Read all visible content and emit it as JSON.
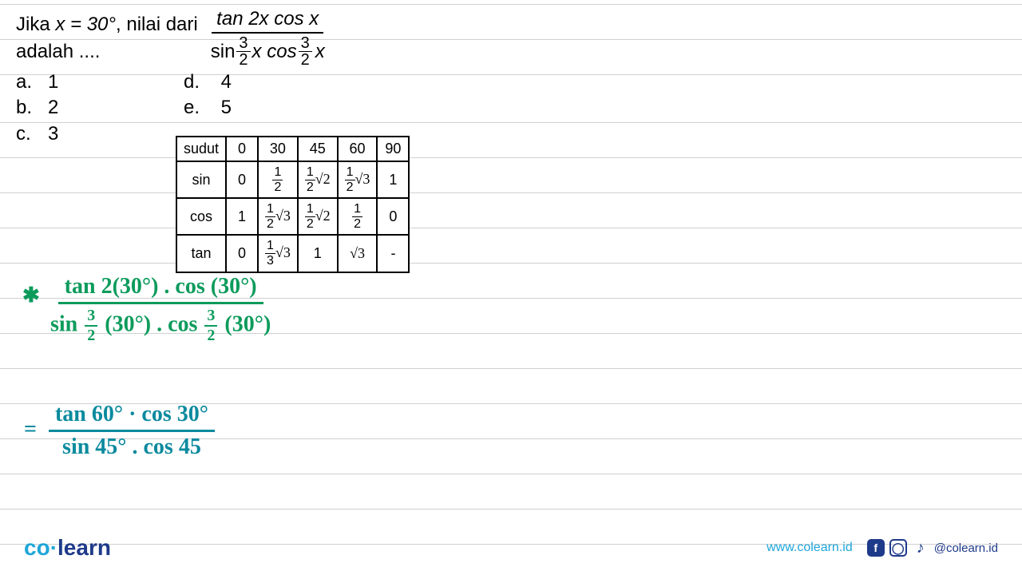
{
  "colors": {
    "text": "#000000",
    "grid_line": "#d0d0d0",
    "handwriting_green": "#0d9b5c",
    "handwriting_teal": "#0b8a9e",
    "brand_light": "#1ea6d9",
    "brand_dark": "#1e3a8a",
    "background": "#ffffff"
  },
  "problem": {
    "line1_prefix": "Jika ",
    "given": "x = 30°",
    "line1_suffix": ", nilai dari",
    "line2": "adalah ....",
    "expression": {
      "numerator": "tan 2x cos x",
      "denominator": {
        "prefix": "sin",
        "frac1": {
          "n": "3",
          "d": "2"
        },
        "mid": "x cos",
        "frac2": {
          "n": "3",
          "d": "2"
        },
        "suffix": "x"
      }
    },
    "options": {
      "a": "1",
      "b": "2",
      "c": "3",
      "d": "4",
      "e": "5",
      "label_a": "a.",
      "label_b": "b.",
      "label_c": "c.",
      "label_d": "d.",
      "label_e": "e."
    }
  },
  "trig_table": {
    "header": [
      "sudut",
      "0",
      "30",
      "45",
      "60",
      "90"
    ],
    "rows": [
      {
        "label": "sin",
        "cells": [
          "0",
          {
            "type": "frac",
            "n": "1",
            "d": "2"
          },
          {
            "type": "fracroot",
            "n": "1",
            "d": "2",
            "r": "2"
          },
          {
            "type": "fracroot",
            "n": "1",
            "d": "2",
            "r": "3"
          },
          "1"
        ]
      },
      {
        "label": "cos",
        "cells": [
          "1",
          {
            "type": "fracroot",
            "n": "1",
            "d": "2",
            "r": "3"
          },
          {
            "type": "fracroot",
            "n": "1",
            "d": "2",
            "r": "2"
          },
          {
            "type": "frac",
            "n": "1",
            "d": "2"
          },
          "0"
        ]
      },
      {
        "label": "tan",
        "cells": [
          "0",
          {
            "type": "fracroot",
            "n": "1",
            "d": "3",
            "r": "3"
          },
          "1",
          {
            "type": "root",
            "r": "3"
          },
          "-"
        ]
      }
    ]
  },
  "handwriting": {
    "step1": {
      "asterisk": "✱",
      "num": "tan 2(30°) . cos (30°)",
      "den_prefix": "sin ",
      "den_frac": {
        "n": "3",
        "d": "2"
      },
      "den_mid": "(30°) . cos ",
      "den_frac2": {
        "n": "3",
        "d": "2"
      },
      "den_suffix": "(30°)"
    },
    "step2": {
      "eq": "=",
      "num": "tan 60° · cos 30°",
      "den": "sin 45° . cos 45"
    }
  },
  "footer": {
    "brand_co": "co",
    "brand_learn": "learn",
    "website": "www.colearn.id",
    "handle": "@colearn.id"
  }
}
